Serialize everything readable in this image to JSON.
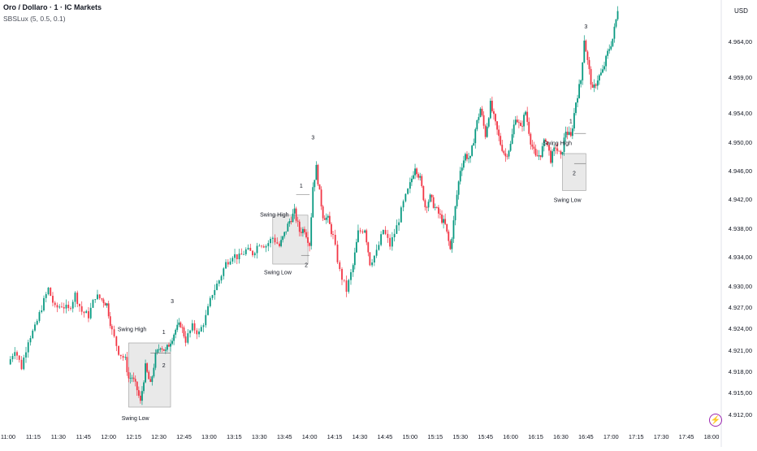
{
  "header": {
    "title": "Oro / Dollaro · 1 · IC Markets",
    "indicator": "SBSLux (5, 0.5, 0.1)"
  },
  "price_axis": {
    "currency": "USD"
  },
  "alert": {
    "icon": "lightning-icon",
    "color": "#9c27b0"
  },
  "colors": {
    "up": "#089981",
    "down": "#f23645",
    "zone_fill": "#e9e9e9",
    "zone_stroke": "#9a9a9a"
  },
  "chart_data": {
    "type": "candlestick",
    "title": "Oro / Dollaro · 1 · IC Markets",
    "ylabel": "USD",
    "xlabel": "",
    "y_ticks": [
      "4.912,00",
      "4.915,00",
      "4.918,00",
      "4.921,00",
      "4.924,00",
      "4.927,00",
      "4.930,00",
      "4.934,00",
      "4.938,00",
      "4.942,00",
      "4.946,00",
      "4.950,00",
      "4.954,00",
      "4.959,00",
      "4.964,00"
    ],
    "x_ticks": [
      "11:00",
      "11:15",
      "11:30",
      "11:45",
      "12:00",
      "12:15",
      "12:30",
      "12:45",
      "13:00",
      "13:15",
      "13:30",
      "13:45",
      "14:00",
      "14:15",
      "14:30",
      "14:45",
      "15:00",
      "15:15",
      "15:30",
      "15:45",
      "16:00",
      "16:15",
      "16:30",
      "16:45",
      "17:00",
      "17:15",
      "17:30",
      "17:45",
      "18:00"
    ],
    "ylim": [
      4911,
      4968
    ],
    "xlim": [
      "11:00",
      "18:00"
    ],
    "grid": false,
    "path": [
      [
        "11:00",
        4919.0
      ],
      [
        "11:04",
        4921.2
      ],
      [
        "11:08",
        4918.6
      ],
      [
        "11:12",
        4922.5
      ],
      [
        "11:16",
        4924.0
      ],
      [
        "11:20",
        4927.0
      ],
      [
        "11:24",
        4929.6
      ],
      [
        "11:28",
        4926.8
      ],
      [
        "11:32",
        4927.3
      ],
      [
        "11:36",
        4926.6
      ],
      [
        "11:40",
        4928.8
      ],
      [
        "11:44",
        4926.4
      ],
      [
        "11:48",
        4925.8
      ],
      [
        "11:52",
        4928.6
      ],
      [
        "11:56",
        4928.1
      ],
      [
        "11:59",
        4927.4
      ],
      [
        "12:02",
        4923.6
      ],
      [
        "12:06",
        4920.8
      ],
      [
        "12:10",
        4919.6
      ],
      [
        "12:12",
        4917.0
      ],
      [
        "12:14",
        4917.2
      ],
      [
        "12:17",
        4915.4
      ],
      [
        "12:19",
        4913.6
      ],
      [
        "12:22",
        4918.6
      ],
      [
        "12:25",
        4916.0
      ],
      [
        "12:28",
        4920.2
      ],
      [
        "12:31",
        4921.7
      ],
      [
        "12:34",
        4920.8
      ],
      [
        "12:37",
        4922.3
      ],
      [
        "12:40",
        4923.8
      ],
      [
        "12:43",
        4924.6
      ],
      [
        "12:46",
        4922.4
      ],
      [
        "12:50",
        4924.2
      ],
      [
        "12:54",
        4923.3
      ],
      [
        "12:58",
        4925.6
      ],
      [
        "13:02",
        4929.0
      ],
      [
        "13:06",
        4930.8
      ],
      [
        "13:10",
        4933.1
      ],
      [
        "13:14",
        4934.3
      ],
      [
        "13:18",
        4933.9
      ],
      [
        "13:22",
        4934.9
      ],
      [
        "13:26",
        4934.5
      ],
      [
        "13:30",
        4936.0
      ],
      [
        "13:34",
        4935.6
      ],
      [
        "13:38",
        4936.7
      ],
      [
        "13:42",
        4935.5
      ],
      [
        "13:45",
        4937.2
      ],
      [
        "13:48",
        4939.0
      ],
      [
        "13:51",
        4940.2
      ],
      [
        "13:54",
        4937.6
      ],
      [
        "13:57",
        4937.9
      ],
      [
        "14:00",
        4935.8
      ],
      [
        "14:02",
        4943.8
      ],
      [
        "14:04",
        4946.4
      ],
      [
        "14:06",
        4942.8
      ],
      [
        "14:08",
        4939.8
      ],
      [
        "14:11",
        4939.2
      ],
      [
        "14:14",
        4936.8
      ],
      [
        "14:18",
        4932.0
      ],
      [
        "14:22",
        4929.4
      ],
      [
        "14:26",
        4932.8
      ],
      [
        "14:29",
        4937.4
      ],
      [
        "14:33",
        4938.0
      ],
      [
        "14:36",
        4933.2
      ],
      [
        "14:40",
        4934.6
      ],
      [
        "14:44",
        4937.8
      ],
      [
        "14:48",
        4935.6
      ],
      [
        "14:52",
        4938.2
      ],
      [
        "14:56",
        4941.4
      ],
      [
        "15:00",
        4944.0
      ],
      [
        "15:03",
        4946.7
      ],
      [
        "15:06",
        4944.8
      ],
      [
        "15:09",
        4941.0
      ],
      [
        "15:12",
        4942.2
      ],
      [
        "15:15",
        4940.8
      ],
      [
        "15:18",
        4939.6
      ],
      [
        "15:21",
        4938.4
      ],
      [
        "15:24",
        4935.0
      ],
      [
        "15:27",
        4940.8
      ],
      [
        "15:30",
        4946.2
      ],
      [
        "15:33",
        4948.2
      ],
      [
        "15:36",
        4947.6
      ],
      [
        "15:39",
        4951.8
      ],
      [
        "15:42",
        4954.6
      ],
      [
        "15:45",
        4951.0
      ],
      [
        "15:48",
        4955.2
      ],
      [
        "15:51",
        4952.4
      ],
      [
        "15:54",
        4949.8
      ],
      [
        "15:57",
        4948.0
      ],
      [
        "16:00",
        4949.6
      ],
      [
        "16:03",
        4953.6
      ],
      [
        "16:06",
        4951.8
      ],
      [
        "16:09",
        4954.2
      ],
      [
        "16:12",
        4950.2
      ],
      [
        "16:15",
        4947.8
      ],
      [
        "16:18",
        4948.4
      ],
      [
        "16:21",
        4950.6
      ],
      [
        "16:24",
        4947.6
      ],
      [
        "16:27",
        4949.4
      ],
      [
        "16:30",
        4947.8
      ],
      [
        "16:33",
        4951.6
      ],
      [
        "16:36",
        4950.6
      ],
      [
        "16:39",
        4955.6
      ],
      [
        "16:42",
        4958.6
      ],
      [
        "16:44",
        4964.4
      ],
      [
        "16:46",
        4961.2
      ],
      [
        "16:49",
        4957.0
      ],
      [
        "16:52",
        4958.8
      ],
      [
        "16:55",
        4959.8
      ],
      [
        "16:58",
        4962.4
      ],
      [
        "17:01",
        4964.4
      ],
      [
        "17:03",
        4967.0
      ],
      [
        "17:04",
        4968.6
      ]
    ],
    "annotations": [
      {
        "text": "Swing High",
        "time": "12:14",
        "price": 4923.6
      },
      {
        "text": "1",
        "time": "12:33",
        "price": 4923.2
      },
      {
        "text": "2",
        "time": "12:33",
        "price": 4918.6
      },
      {
        "text": "3",
        "time": "12:38",
        "price": 4927.6
      },
      {
        "text": "Swing Low",
        "time": "12:16",
        "price": 4911.2
      },
      {
        "text": "Swing High",
        "time": "13:39",
        "price": 4939.6
      },
      {
        "text": "1",
        "time": "13:55",
        "price": 4943.6
      },
      {
        "text": "2",
        "time": "13:58",
        "price": 4932.6
      },
      {
        "text": "3",
        "time": "14:02",
        "price": 4950.4
      },
      {
        "text": "Swing Low",
        "time": "13:41",
        "price": 4931.6
      },
      {
        "text": "Swing High",
        "time": "16:28",
        "price": 4949.6
      },
      {
        "text": "1",
        "time": "16:36",
        "price": 4952.6
      },
      {
        "text": "2",
        "time": "16:38",
        "price": 4945.4
      },
      {
        "text": "3",
        "time": "16:45",
        "price": 4965.8
      },
      {
        "text": "Swing Low",
        "time": "16:34",
        "price": 4941.6
      }
    ],
    "zones": [
      {
        "t0": "12:12",
        "t1": "12:37",
        "high": 4922.0,
        "low": 4913.0
      },
      {
        "t0": "13:38",
        "t1": "13:59",
        "high": 4939.8,
        "low": 4933.0
      },
      {
        "t0": "16:31",
        "t1": "16:45",
        "high": 4948.4,
        "low": 4943.2
      }
    ],
    "segments": [
      {
        "t0": "12:25",
        "t1": "12:37",
        "price": 4920.6
      },
      {
        "t0": "13:52",
        "t1": "14:00",
        "price": 4942.6
      },
      {
        "t0": "13:55",
        "t1": "14:00",
        "price": 4934.2
      },
      {
        "t0": "16:38",
        "t1": "16:45",
        "price": 4951.2
      },
      {
        "t0": "16:38",
        "t1": "16:45",
        "price": 4947.0
      }
    ]
  }
}
